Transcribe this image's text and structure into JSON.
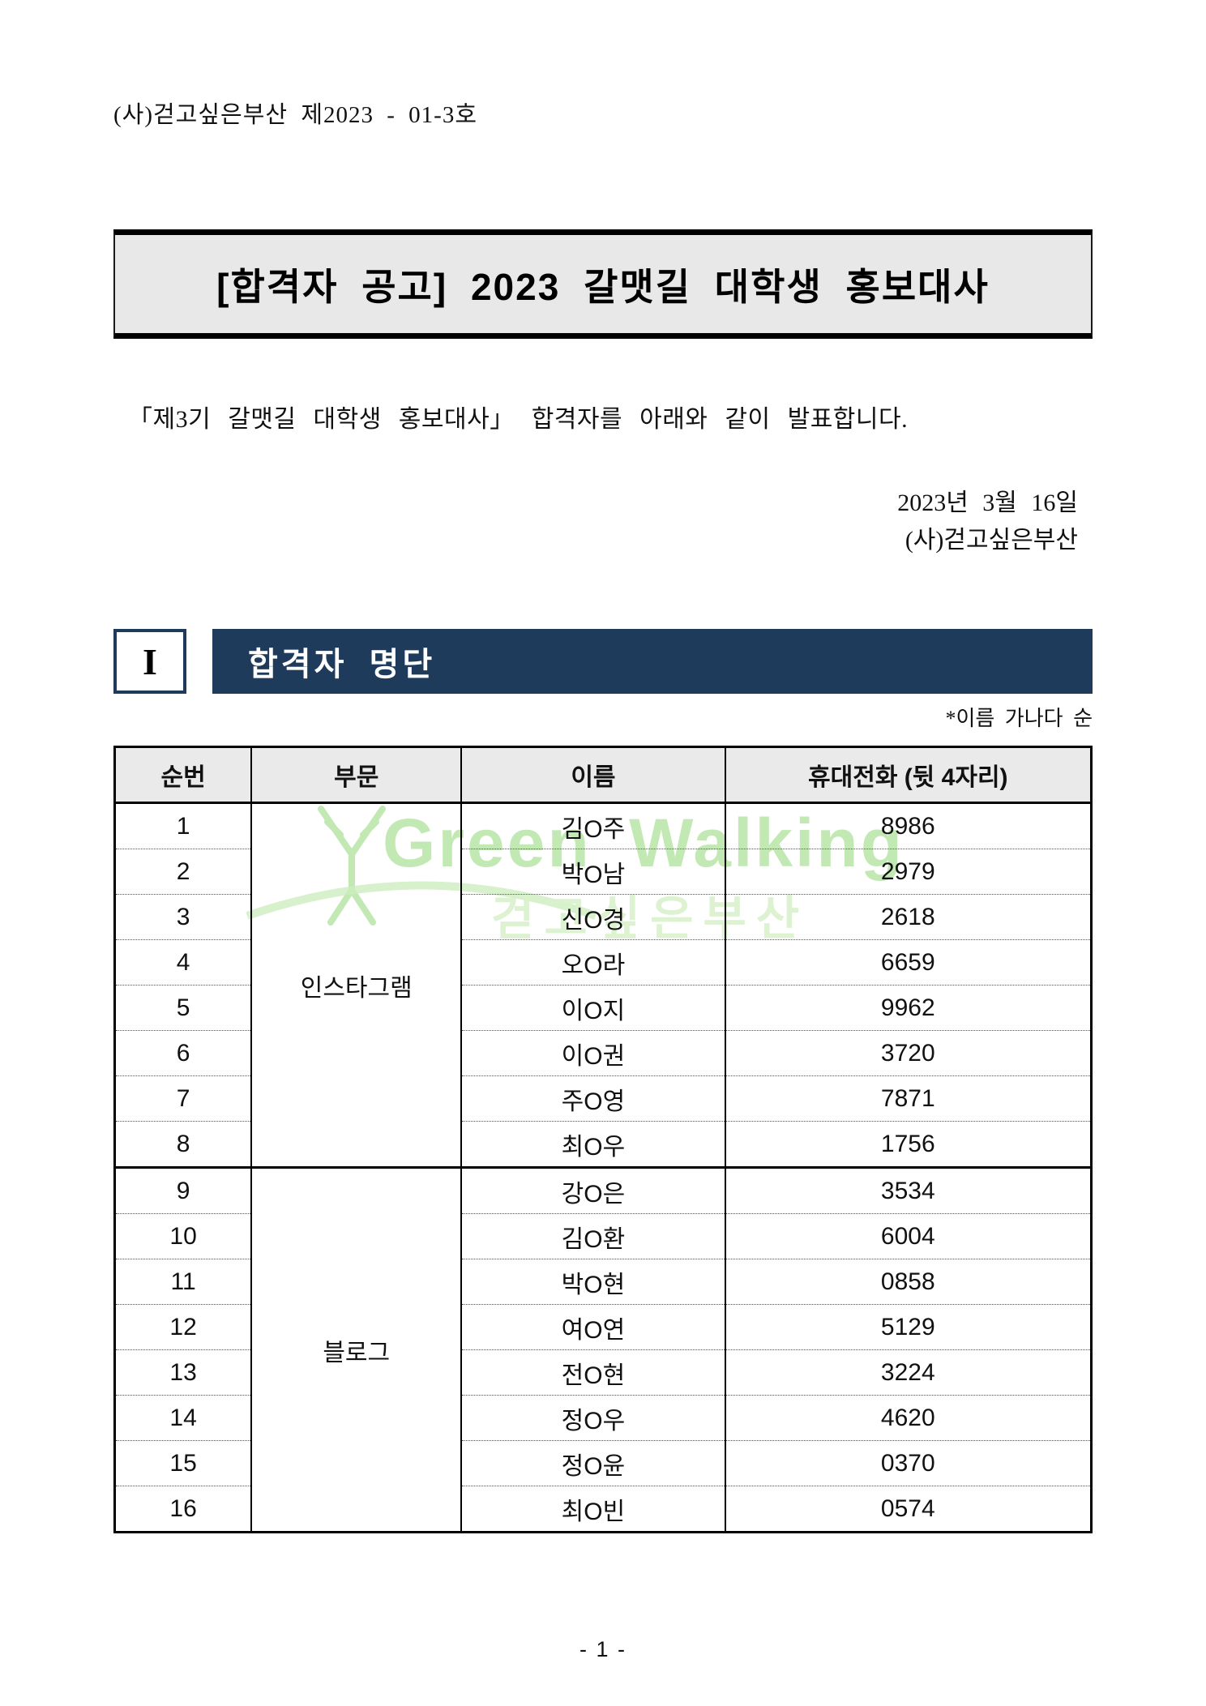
{
  "doc": {
    "number": "(사)걷고싶은부산 제2023 - 01-3호",
    "title": "[합격자 공고] 2023 갈맷길 대학생 홍보대사",
    "intro": "「제3기 갈맷길 대학생 홍보대사」 합격자를 아래와 같이 발표합니다.",
    "date_line": "2023년 3월 16일",
    "org_line": "(사)걷고싶은부산",
    "footer": "- 1 -"
  },
  "section": {
    "numeral": "I",
    "title": "합격자 명단"
  },
  "note": "*이름 가나다 순",
  "watermark": {
    "line1": "Green Walking",
    "line2": "걷고싶은부산"
  },
  "colors": {
    "navy": "#1e3b5c",
    "title_box_gray": "#e8e8e8",
    "header_row_gray": "#eaeaea",
    "watermark_green": "#bce7ab",
    "watermark_light_green": "#daf1cc"
  },
  "table": {
    "headers": [
      "순번",
      "부문",
      "이름",
      "휴대전화 (뒷 4자리)"
    ],
    "col_widths_pct": [
      14,
      21.5,
      27,
      37.5
    ],
    "groups": [
      {
        "category": "인스타그램",
        "rows": [
          {
            "no": "1",
            "name": "김O주",
            "phone": "8986"
          },
          {
            "no": "2",
            "name": "박O남",
            "phone": "2979"
          },
          {
            "no": "3",
            "name": "신O경",
            "phone": "2618"
          },
          {
            "no": "4",
            "name": "오O라",
            "phone": "6659"
          },
          {
            "no": "5",
            "name": "이O지",
            "phone": "9962"
          },
          {
            "no": "6",
            "name": "이O권",
            "phone": "3720"
          },
          {
            "no": "7",
            "name": "주O영",
            "phone": "7871"
          },
          {
            "no": "8",
            "name": "최O우",
            "phone": "1756"
          }
        ]
      },
      {
        "category": "블로그",
        "rows": [
          {
            "no": "9",
            "name": "강O은",
            "phone": "3534"
          },
          {
            "no": "10",
            "name": "김O환",
            "phone": "6004"
          },
          {
            "no": "11",
            "name": "박O현",
            "phone": "0858"
          },
          {
            "no": "12",
            "name": "여O연",
            "phone": "5129"
          },
          {
            "no": "13",
            "name": "전O현",
            "phone": "3224"
          },
          {
            "no": "14",
            "name": "정O우",
            "phone": "4620"
          },
          {
            "no": "15",
            "name": "정O윤",
            "phone": "0370"
          },
          {
            "no": "16",
            "name": "최O빈",
            "phone": "0574"
          }
        ]
      }
    ]
  }
}
